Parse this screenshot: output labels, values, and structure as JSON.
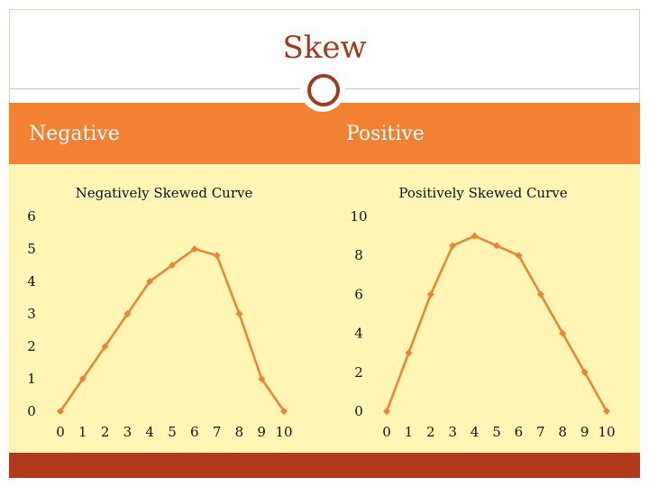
{
  "slide": {
    "title": "Skew",
    "left_heading": "Negative",
    "right_heading": "Positive"
  },
  "colors": {
    "title": "#a13a1f",
    "band": "#f28232",
    "content_bg": "#fff5b4",
    "footer": "#b23a1c",
    "series": "#f28232",
    "ring": "#9e3b22"
  },
  "icons": [
    "ring-icon"
  ],
  "chart_data": [
    {
      "type": "line",
      "title": "Negatively Skewed Curve",
      "xlabel": "",
      "ylabel": "",
      "x": [
        0,
        1,
        2,
        3,
        4,
        5,
        6,
        7,
        8,
        9,
        10
      ],
      "series": [
        {
          "values": [
            0,
            1,
            2,
            3,
            4,
            4.5,
            5,
            4.8,
            3,
            1,
            0
          ]
        }
      ],
      "xlim": [
        0,
        10
      ],
      "ylim": [
        0,
        6
      ],
      "xticks": [
        "0",
        "1",
        "2",
        "3",
        "4",
        "5",
        "6",
        "7",
        "8",
        "9",
        "10"
      ],
      "yticks": [
        "0",
        "1",
        "2",
        "3",
        "4",
        "5",
        "6"
      ],
      "grid": false,
      "legend": false
    },
    {
      "type": "line",
      "title": "Positively Skewed Curve",
      "xlabel": "",
      "ylabel": "",
      "x": [
        0,
        1,
        2,
        3,
        4,
        5,
        6,
        7,
        8,
        9,
        10
      ],
      "series": [
        {
          "values": [
            0,
            3,
            6,
            8.5,
            9,
            8.5,
            8,
            6,
            4,
            2,
            0
          ]
        }
      ],
      "xlim": [
        0,
        10
      ],
      "ylim": [
        0,
        10
      ],
      "xticks": [
        "0",
        "1",
        "2",
        "3",
        "4",
        "5",
        "6",
        "7",
        "8",
        "9",
        "10"
      ],
      "yticks": [
        "0",
        "2",
        "4",
        "6",
        "8",
        "10"
      ],
      "grid": false,
      "legend": false
    }
  ]
}
